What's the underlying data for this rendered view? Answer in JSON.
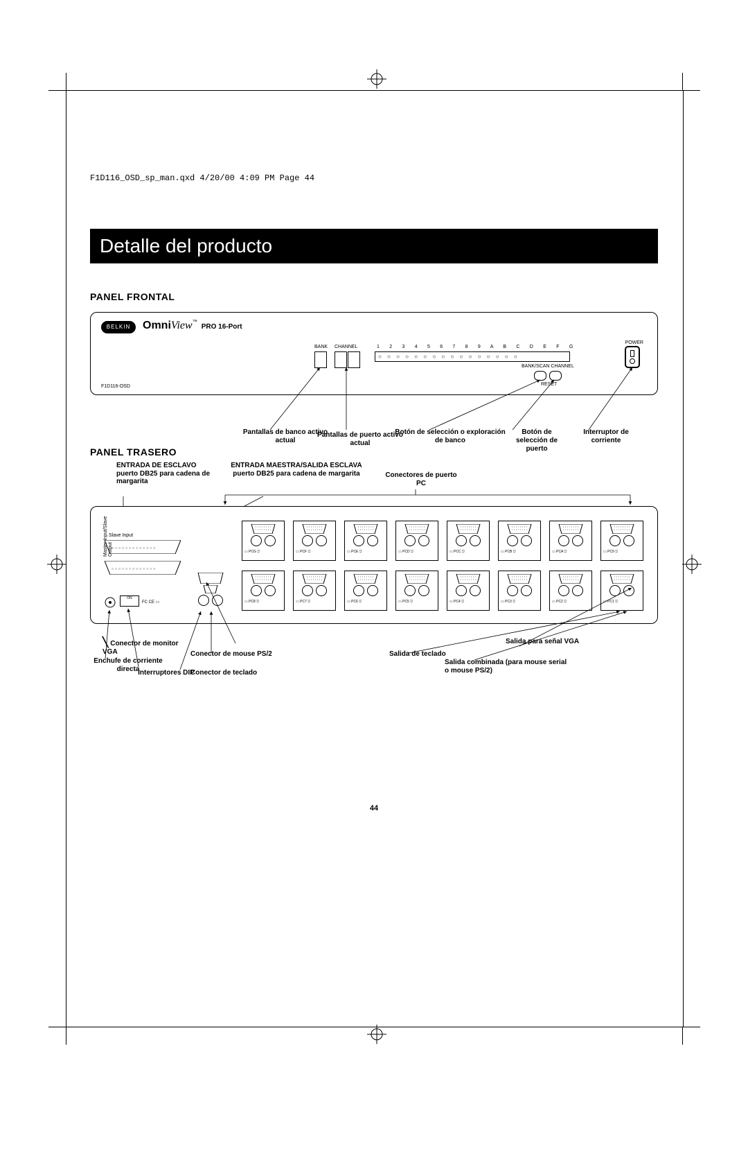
{
  "header": {
    "print_line": "F1D116_OSD_sp_man.qxd  4/20/00  4:09 PM  Page 44",
    "title": "Detalle del producto",
    "page_number": "44"
  },
  "sections": {
    "front_title": "PANEL FRONTAL",
    "rear_title": "PANEL TRASERO"
  },
  "front_panel": {
    "brand": "BELKIN",
    "product_name_bold": "Omni",
    "product_name_italic": "View",
    "product_name_tm": "™",
    "product_subtitle": "PRO 16-Port",
    "model_id": "F1D116-OSD",
    "label_bank": "BANK",
    "label_channel": "CHANNEL",
    "channel_ids": "1  2  3  4  5  6  7  8  9  A  B  C  D  E  F  G",
    "label_bankscan": "BANK/SCAN CHANNEL",
    "label_reset": "RESET",
    "label_power": "POWER",
    "callouts": {
      "bank_display": "Pantallas de banco activo actual",
      "port_display": "Pantallas de puerto activo actual",
      "bank_scan_btn": "Botón de selección o exploración de banco",
      "port_sel_btn": "Botón de selección de puerto",
      "power_sw": "Interruptor de corriente"
    }
  },
  "rear_panel": {
    "top_labels": {
      "slave_in": "ENTRADA DE ESCLAVO\npuerto DB25 para cadena de margarita",
      "master_in": "ENTRADA MAESTRA/SALIDA ESCLAVA\npuerto DB25 para cadena de margarita",
      "pc_ports": "Conectores de puerto PC"
    },
    "internal_labels": {
      "slave_input": "Slave Input",
      "master_io": "Master Input/Slave Output"
    },
    "port_ids_top": [
      "PCG",
      "PCF",
      "PCE",
      "PCD",
      "PCC",
      "PCB",
      "PCA",
      "PC9"
    ],
    "port_ids_bot": [
      "PC8",
      "PC7",
      "PC6",
      "PC5",
      "PC4",
      "PC3",
      "PC2",
      "PC1"
    ],
    "bottom_labels": {
      "power_plug": "Enchufe de corriente directa",
      "dip": "Interruptores DIP",
      "kb_conn": "Conector de teclado",
      "mouse_conn": "Conector de mouse PS/2",
      "vga_conn": "Conector de monitor VGA",
      "kb_out": "Salida de teclado",
      "combo_out": "Salida combinada (para mouse serial o mouse PS/2)",
      "vga_out": "Salida para señal VGA"
    }
  },
  "colors": {
    "ink": "#000000",
    "paper": "#ffffff"
  }
}
